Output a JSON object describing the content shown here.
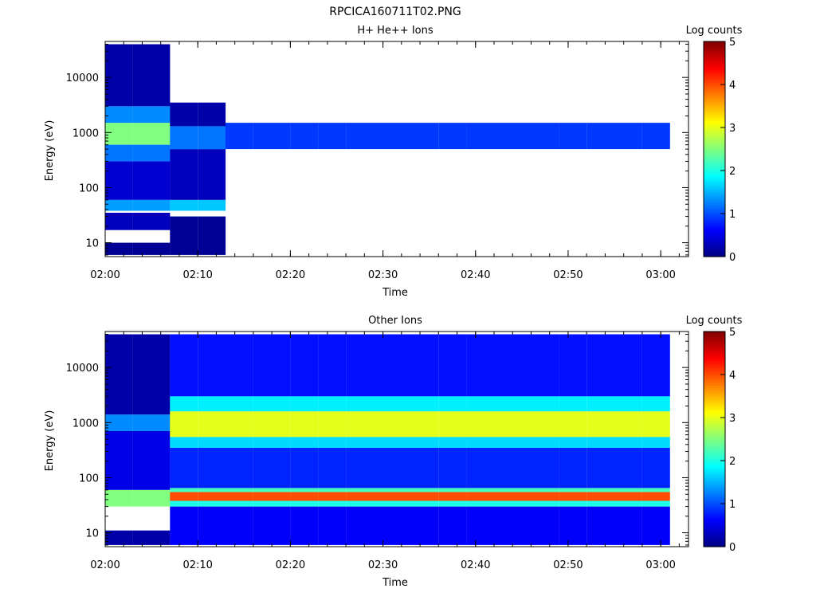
{
  "figure": {
    "title": "RPCICA160711T02.PNG"
  },
  "chart_data": [
    {
      "type": "heatmap",
      "title": "H+ He++ Ions",
      "xlabel": "Time",
      "ylabel": "Energy (eV)",
      "colorbar_label": "Log counts",
      "x_ticks": [
        "02:00",
        "02:10",
        "02:20",
        "02:30",
        "02:40",
        "02:50",
        "03:00"
      ],
      "x_range": [
        "02:00",
        "03:03"
      ],
      "y_scale": "log",
      "y_ticks": [
        10,
        100,
        1000,
        10000
      ],
      "y_tick_labels": [
        "10",
        "100",
        "1000",
        "10000"
      ],
      "y_range": [
        5.6,
        45000
      ],
      "color_range": [
        0,
        5
      ],
      "color_ticks": [
        "0",
        "1",
        "2",
        "3",
        "4",
        "5"
      ],
      "colormap": "jet",
      "time_bins_start": [
        "02:00",
        "02:03",
        "02:07",
        "02:10",
        "02:13",
        "02:16",
        "02:20",
        "02:23",
        "02:26",
        "02:29",
        "02:33",
        "02:36",
        "02:39",
        "02:42",
        "02:46",
        "02:49",
        "02:52",
        "02:55",
        "02:58"
      ],
      "bands": [
        {
          "x_bins": [
            0,
            1
          ],
          "e_lo": 6,
          "e_hi": 10,
          "log_counts": 0.1
        },
        {
          "x_bins": [
            0,
            1
          ],
          "e_lo": 17,
          "e_hi": 35,
          "log_counts": 0.3
        },
        {
          "x_bins": [
            0,
            1
          ],
          "e_lo": 38,
          "e_hi": 60,
          "log_counts": 1.4
        },
        {
          "x_bins": [
            0,
            1
          ],
          "e_lo": 60,
          "e_hi": 300,
          "log_counts": 0.4
        },
        {
          "x_bins": [
            0,
            1
          ],
          "e_lo": 300,
          "e_hi": 600,
          "log_counts": 1.2
        },
        {
          "x_bins": [
            0,
            1
          ],
          "e_lo": 600,
          "e_hi": 1500,
          "log_counts": 2.5
        },
        {
          "x_bins": [
            0,
            1
          ],
          "e_lo": 1500,
          "e_hi": 3000,
          "log_counts": 1.3
        },
        {
          "x_bins": [
            0,
            1
          ],
          "e_lo": 3000,
          "e_hi": 40000,
          "log_counts": 0.2
        },
        {
          "x_bins": [
            2,
            3
          ],
          "e_lo": 6,
          "e_hi": 30,
          "log_counts": 0.1
        },
        {
          "x_bins": [
            2,
            3
          ],
          "e_lo": 38,
          "e_hi": 60,
          "log_counts": 1.6
        },
        {
          "x_bins": [
            2,
            3
          ],
          "e_lo": 60,
          "e_hi": 500,
          "log_counts": 0.3
        },
        {
          "x_bins": [
            2,
            3
          ],
          "e_lo": 500,
          "e_hi": 1300,
          "log_counts": 1.2
        },
        {
          "x_bins": [
            2,
            3
          ],
          "e_lo": 1300,
          "e_hi": 3500,
          "log_counts": 0.2
        },
        {
          "x_bins": [
            4,
            18
          ],
          "e_lo": 500,
          "e_hi": 1500,
          "log_counts": 0.9
        }
      ]
    },
    {
      "type": "heatmap",
      "title": "Other Ions",
      "xlabel": "Time",
      "ylabel": "Energy (eV)",
      "colorbar_label": "Log counts",
      "x_ticks": [
        "02:00",
        "02:10",
        "02:20",
        "02:30",
        "02:40",
        "02:50",
        "03:00"
      ],
      "x_range": [
        "02:00",
        "03:03"
      ],
      "y_scale": "log",
      "y_ticks": [
        10,
        100,
        1000,
        10000
      ],
      "y_tick_labels": [
        "10",
        "100",
        "1000",
        "10000"
      ],
      "y_range": [
        5.6,
        45000
      ],
      "color_range": [
        0,
        5
      ],
      "color_ticks": [
        "0",
        "1",
        "2",
        "3",
        "4",
        "5"
      ],
      "colormap": "jet",
      "time_bins_start": [
        "02:00",
        "02:03",
        "02:07",
        "02:10",
        "02:13",
        "02:16",
        "02:20",
        "02:23",
        "02:26",
        "02:29",
        "02:33",
        "02:36",
        "02:39",
        "02:42",
        "02:46",
        "02:49",
        "02:52",
        "02:55",
        "02:58"
      ],
      "bands": [
        {
          "x_bins": [
            0,
            1
          ],
          "e_lo": 6,
          "e_hi": 11,
          "log_counts": 0.2
        },
        {
          "x_bins": [
            0,
            1
          ],
          "e_lo": 30,
          "e_hi": 60,
          "log_counts": 2.5
        },
        {
          "x_bins": [
            0,
            1
          ],
          "e_lo": 60,
          "e_hi": 700,
          "log_counts": 0.5
        },
        {
          "x_bins": [
            0,
            1
          ],
          "e_lo": 700,
          "e_hi": 1400,
          "log_counts": 1.3
        },
        {
          "x_bins": [
            0,
            1
          ],
          "e_lo": 1400,
          "e_hi": 40000,
          "log_counts": 0.2
        },
        {
          "x_bins": [
            2,
            18
          ],
          "e_lo": 6,
          "e_hi": 30,
          "log_counts": 0.6
        },
        {
          "x_bins": [
            2,
            18
          ],
          "e_lo": 30,
          "e_hi": 38,
          "log_counts": 2.0
        },
        {
          "x_bins": [
            2,
            18
          ],
          "e_lo": 38,
          "e_hi": 55,
          "log_counts": 4.0
        },
        {
          "x_bins": [
            2,
            18
          ],
          "e_lo": 55,
          "e_hi": 65,
          "log_counts": 2.2
        },
        {
          "x_bins": [
            2,
            18
          ],
          "e_lo": 65,
          "e_hi": 350,
          "log_counts": 0.8
        },
        {
          "x_bins": [
            2,
            18
          ],
          "e_lo": 350,
          "e_hi": 550,
          "log_counts": 1.7
        },
        {
          "x_bins": [
            2,
            18
          ],
          "e_lo": 550,
          "e_hi": 1600,
          "log_counts": 3.0
        },
        {
          "x_bins": [
            2,
            18
          ],
          "e_lo": 1600,
          "e_hi": 3000,
          "log_counts": 1.8
        },
        {
          "x_bins": [
            2,
            18
          ],
          "e_lo": 3000,
          "e_hi": 40000,
          "log_counts": 0.7
        }
      ]
    }
  ]
}
